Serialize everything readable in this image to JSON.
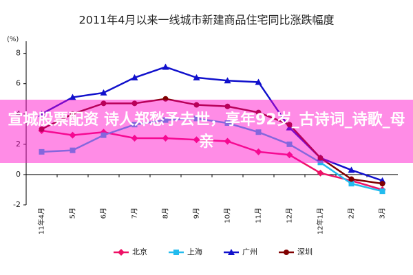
{
  "chart_data": {
    "type": "line",
    "title": "2011年4月以来一线城市新建商品住宅同比涨跌幅度",
    "y_label": "(%)",
    "categories": [
      "11年4月",
      "5月",
      "6月",
      "7月",
      "8月",
      "9月",
      "10月",
      "11月",
      "12月",
      "12年1月",
      "2月",
      "3月"
    ],
    "series": [
      {
        "name": "北京",
        "color": "#ee1166",
        "marker": "diamond",
        "values": [
          2.9,
          2.6,
          2.8,
          2.4,
          2.4,
          2.3,
          2.2,
          1.5,
          1.3,
          0.1,
          -0.4,
          -1.0
        ]
      },
      {
        "name": "上海",
        "color": "#22bbee",
        "marker": "square",
        "values": [
          1.5,
          1.6,
          2.6,
          3.3,
          3.6,
          3.7,
          3.4,
          2.8,
          2.0,
          0.8,
          -0.6,
          -1.1
        ]
      },
      {
        "name": "广州",
        "color": "#1111cc",
        "marker": "triangle",
        "values": [
          4.0,
          5.1,
          5.4,
          6.4,
          7.1,
          6.4,
          6.2,
          6.1,
          3.1,
          1.1,
          0.3,
          -0.4
        ]
      },
      {
        "name": "深圳",
        "color": "#800000",
        "marker": "circle",
        "values": [
          3.0,
          4.0,
          4.7,
          4.7,
          5.0,
          4.6,
          4.5,
          4.1,
          3.3,
          1.1,
          -0.3,
          -0.6
        ]
      }
    ],
    "ylim": [
      -2,
      8.8
    ],
    "yticks": [
      -2,
      0,
      2,
      4,
      6,
      8
    ]
  },
  "overlay_text": "宣城股票配资 诗人郑愁予去世，享年92岁_古诗词_诗歌_母亲"
}
